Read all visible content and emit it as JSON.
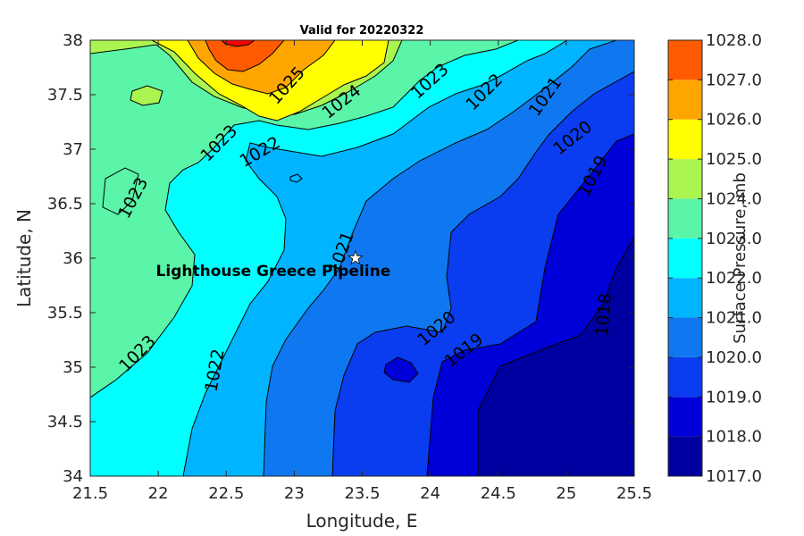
{
  "chart_data": {
    "type": "contour",
    "title": "Valid for 20220322",
    "xlabel": "Longitude, E",
    "ylabel": "Latitude, N",
    "xlim": [
      21.5,
      25.5
    ],
    "ylim": [
      34,
      38
    ],
    "xticks": [
      "21.5",
      "22",
      "22.5",
      "23",
      "23.5",
      "24",
      "24.5",
      "25",
      "25.5"
    ],
    "yticks": [
      "34",
      "34.5",
      "35",
      "35.5",
      "36",
      "36.5",
      "37",
      "37.5",
      "38"
    ],
    "colorbar": {
      "title": "Surface Pressure, mb",
      "levels": [
        1017,
        1018,
        1019,
        1020,
        1021,
        1022,
        1023,
        1024,
        1025,
        1026,
        1027,
        1028
      ],
      "tick_labels": [
        "1017.0",
        "1018.0",
        "1019.0",
        "1020.0",
        "1021.0",
        "1022.0",
        "1023.0",
        "1024.0",
        "1025.0",
        "1026.0",
        "1027.0",
        "1028.0"
      ],
      "colors": [
        "#0000a0",
        "#0000d8",
        "#0a3cf0",
        "#0f78f0",
        "#00b4ff",
        "#00ffff",
        "#5af5a8",
        "#aaf550",
        "#ffff00",
        "#ffa500",
        "#ff5a00",
        "#ff0000"
      ]
    },
    "contour_labels": [
      {
        "text": "1025",
        "lon": 22.95,
        "lat": 37.58,
        "angle": -48
      },
      {
        "text": "1024",
        "lon": 23.35,
        "lat": 37.43,
        "angle": -38
      },
      {
        "text": "1023",
        "lon": 24.0,
        "lat": 37.62,
        "angle": -42
      },
      {
        "text": "1022",
        "lon": 24.4,
        "lat": 37.52,
        "angle": -45
      },
      {
        "text": "1021",
        "lon": 24.85,
        "lat": 37.48,
        "angle": -55
      },
      {
        "text": "1020",
        "lon": 25.05,
        "lat": 37.1,
        "angle": -38
      },
      {
        "text": "1019",
        "lon": 25.2,
        "lat": 36.75,
        "angle": -62
      },
      {
        "text": "1023",
        "lon": 22.45,
        "lat": 37.05,
        "angle": -45
      },
      {
        "text": "1022",
        "lon": 22.75,
        "lat": 36.97,
        "angle": -30
      },
      {
        "text": "1023",
        "lon": 21.82,
        "lat": 36.55,
        "angle": -62
      },
      {
        "text": "1021",
        "lon": 23.35,
        "lat": 36.05,
        "angle": -70
      },
      {
        "text": "1020",
        "lon": 24.05,
        "lat": 35.35,
        "angle": -40
      },
      {
        "text": "1019",
        "lon": 24.25,
        "lat": 35.15,
        "angle": -38
      },
      {
        "text": "1018",
        "lon": 25.28,
        "lat": 35.48,
        "angle": -85
      },
      {
        "text": "1023",
        "lon": 21.85,
        "lat": 35.12,
        "angle": -45
      },
      {
        "text": "1022",
        "lon": 22.42,
        "lat": 34.97,
        "angle": -80
      }
    ],
    "marker": {
      "label": "Lighthouse Greece Pipeline",
      "lon": 23.45,
      "lat": 36.0,
      "symbol": "star"
    }
  }
}
